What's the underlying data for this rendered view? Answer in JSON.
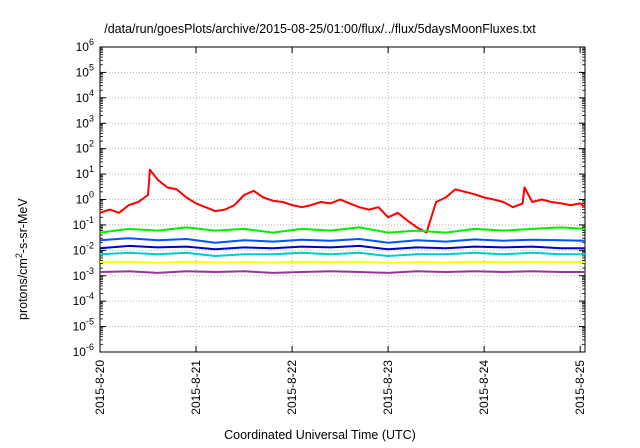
{
  "chart_data": {
    "type": "line",
    "title": "/data/run/goesPlots/archive/2015-08-25/01:00/flux/../flux/5daysMoonFluxes.txt",
    "xlabel": "Coordinated Universal Time (UTC)",
    "ylabel": "protons/cm2-s-sr-MeV",
    "ylabel_parts": [
      "protons/cm",
      "2",
      "-s-sr-MeV"
    ],
    "yscale": "log",
    "ylim_exponents": [
      -6,
      6
    ],
    "yticks": [
      {
        "base": "10",
        "exp": "6"
      },
      {
        "base": "10",
        "exp": "5"
      },
      {
        "base": "10",
        "exp": "4"
      },
      {
        "base": "10",
        "exp": "3"
      },
      {
        "base": "10",
        "exp": "2"
      },
      {
        "base": "10",
        "exp": "1"
      },
      {
        "base": "10",
        "exp": "0"
      },
      {
        "base": "10",
        "exp": "-1"
      },
      {
        "base": "10",
        "exp": "-2"
      },
      {
        "base": "10",
        "exp": "-3"
      },
      {
        "base": "10",
        "exp": "-4"
      },
      {
        "base": "10",
        "exp": "-5"
      },
      {
        "base": "10",
        "exp": "-6"
      }
    ],
    "xticks": [
      "2015-8-20",
      "2015-8-21",
      "2015-8-22",
      "2015-8-23",
      "2015-8-24",
      "2015-8-25"
    ],
    "xlim_days": [
      0,
      5.05
    ],
    "grid": true,
    "legend": "none",
    "series": [
      {
        "color": "#ff0000",
        "x": [
          0,
          0.1,
          0.2,
          0.3,
          0.4,
          0.5,
          0.52,
          0.6,
          0.7,
          0.8,
          0.9,
          1.0,
          1.1,
          1.2,
          1.3,
          1.4,
          1.5,
          1.6,
          1.7,
          1.8,
          1.9,
          2.0,
          2.1,
          2.2,
          2.3,
          2.4,
          2.5,
          2.6,
          2.7,
          2.8,
          2.9,
          3.0,
          3.1,
          3.2,
          3.3,
          3.4,
          3.5,
          3.6,
          3.7,
          3.8,
          3.9,
          4.0,
          4.1,
          4.2,
          4.3,
          4.4,
          4.42,
          4.5,
          4.6,
          4.7,
          4.8,
          4.9,
          5.0,
          5.05
        ],
        "y": [
          0.3,
          0.4,
          0.3,
          0.6,
          0.8,
          1.5,
          15,
          6,
          3,
          2.5,
          1.2,
          0.7,
          0.5,
          0.35,
          0.4,
          0.6,
          1.5,
          2.2,
          1.2,
          0.9,
          0.8,
          0.6,
          0.5,
          0.6,
          0.8,
          0.7,
          1.0,
          0.7,
          0.5,
          0.4,
          0.5,
          0.2,
          0.3,
          0.15,
          0.08,
          0.05,
          0.8,
          1.2,
          2.5,
          2.0,
          1.6,
          1.2,
          1.0,
          0.8,
          0.5,
          0.7,
          3.0,
          0.8,
          1.0,
          0.8,
          0.7,
          0.6,
          0.7,
          0.5
        ]
      },
      {
        "color": "#00ee00",
        "x": [
          0,
          0.3,
          0.6,
          0.9,
          1.2,
          1.5,
          1.8,
          2.1,
          2.4,
          2.7,
          3.0,
          3.3,
          3.6,
          3.9,
          4.2,
          4.5,
          4.8,
          5.05
        ],
        "y": [
          0.05,
          0.07,
          0.06,
          0.08,
          0.06,
          0.07,
          0.05,
          0.07,
          0.06,
          0.08,
          0.05,
          0.06,
          0.05,
          0.07,
          0.06,
          0.07,
          0.08,
          0.07
        ]
      },
      {
        "color": "#0055ff",
        "x": [
          0,
          0.3,
          0.6,
          0.9,
          1.2,
          1.5,
          1.8,
          2.1,
          2.4,
          2.7,
          3.0,
          3.3,
          3.6,
          3.9,
          4.2,
          4.5,
          4.8,
          5.05
        ],
        "y": [
          0.025,
          0.03,
          0.025,
          0.028,
          0.02,
          0.025,
          0.022,
          0.026,
          0.024,
          0.028,
          0.02,
          0.025,
          0.022,
          0.027,
          0.024,
          0.026,
          0.025,
          0.024
        ]
      },
      {
        "color": "#0000cc",
        "x": [
          0,
          0.3,
          0.6,
          0.9,
          1.2,
          1.5,
          1.8,
          2.1,
          2.4,
          2.7,
          3.0,
          3.3,
          3.6,
          3.9,
          4.2,
          4.5,
          4.8,
          5.05
        ],
        "y": [
          0.012,
          0.015,
          0.013,
          0.014,
          0.011,
          0.013,
          0.012,
          0.014,
          0.013,
          0.015,
          0.011,
          0.013,
          0.012,
          0.014,
          0.013,
          0.014,
          0.012,
          0.012
        ]
      },
      {
        "color": "#00cccc",
        "x": [
          0,
          0.3,
          0.6,
          0.9,
          1.2,
          1.5,
          1.8,
          2.1,
          2.4,
          2.7,
          3.0,
          3.3,
          3.6,
          3.9,
          4.2,
          4.5,
          4.8,
          5.05
        ],
        "y": [
          0.007,
          0.008,
          0.007,
          0.008,
          0.006,
          0.007,
          0.007,
          0.008,
          0.007,
          0.008,
          0.006,
          0.007,
          0.007,
          0.008,
          0.007,
          0.008,
          0.007,
          0.007
        ]
      },
      {
        "color": "#ffff00",
        "x": [
          0,
          0.3,
          0.6,
          0.9,
          1.2,
          1.5,
          1.8,
          2.1,
          2.4,
          2.7,
          3.0,
          3.3,
          3.6,
          3.9,
          4.2,
          4.5,
          4.8,
          5.05
        ],
        "y": [
          0.0035,
          0.0035,
          0.0032,
          0.0035,
          0.0033,
          0.0034,
          0.0033,
          0.0035,
          0.0034,
          0.0035,
          0.0032,
          0.0034,
          0.0033,
          0.0035,
          0.0034,
          0.0035,
          0.0034,
          0.0034
        ]
      },
      {
        "color": "#993399",
        "x": [
          0,
          0.3,
          0.6,
          0.9,
          1.2,
          1.5,
          1.8,
          2.1,
          2.4,
          2.7,
          3.0,
          3.3,
          3.6,
          3.9,
          4.2,
          4.5,
          4.8,
          5.05
        ],
        "y": [
          0.0014,
          0.0015,
          0.0013,
          0.0015,
          0.0014,
          0.0015,
          0.0013,
          0.0014,
          0.0015,
          0.0014,
          0.0013,
          0.0015,
          0.0014,
          0.0015,
          0.0014,
          0.0015,
          0.0014,
          0.0014
        ]
      }
    ]
  }
}
